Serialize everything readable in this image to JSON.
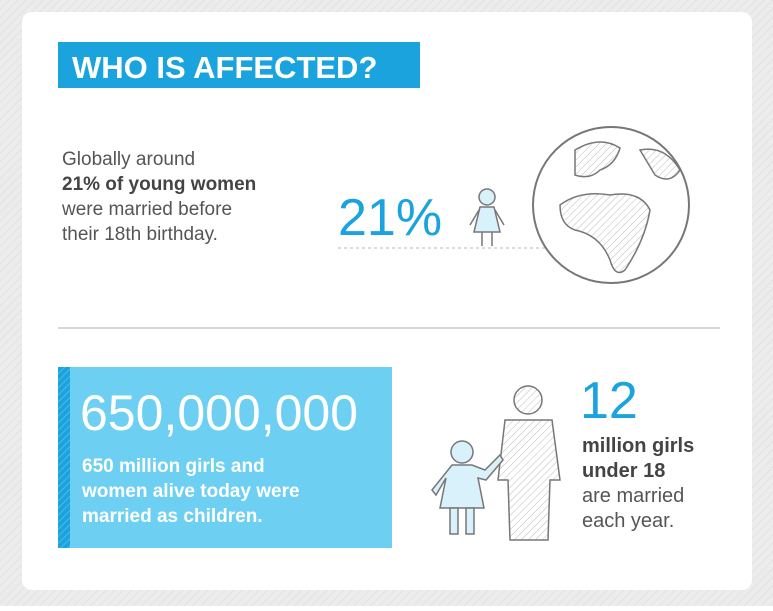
{
  "header": {
    "title": "WHO IS AFFECTED?"
  },
  "section_1": {
    "lines": [
      "Globally around",
      "21% of young women",
      "were married before",
      "their 18th birthday."
    ],
    "stat": "21%"
  },
  "section_2": {
    "stat": "650,000,000",
    "lines": [
      "650 million girls and",
      "women alive today were",
      "married as children."
    ]
  },
  "section_3": {
    "stat": "12",
    "lines": [
      "million girls",
      "under 18",
      "are married",
      "each year."
    ]
  }
}
